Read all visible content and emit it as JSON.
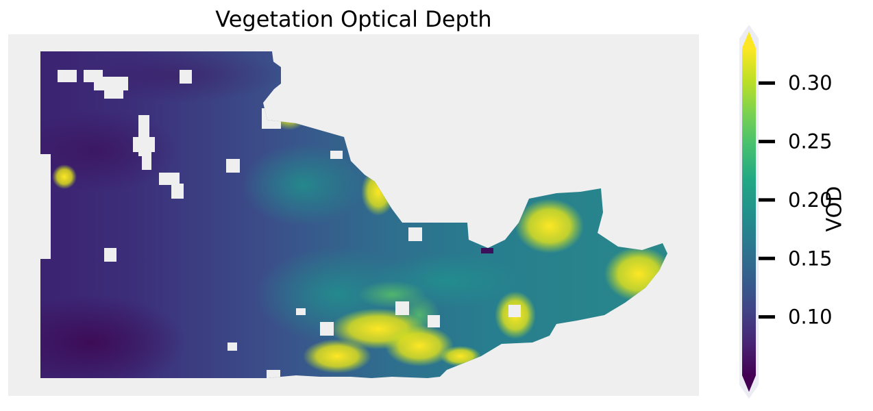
{
  "chart_data": {
    "type": "heatmap",
    "title": "Vegetation Optical Depth",
    "colorbar": {
      "label": "VOD",
      "colormap": "viridis",
      "vmin": 0.05,
      "vmax": 0.33,
      "extend": "both",
      "ticks": [
        0.1,
        0.15,
        0.2,
        0.25,
        0.3
      ],
      "tick_labels": [
        "0.10",
        "0.15",
        "0.20",
        "0.25",
        "0.30"
      ]
    },
    "background_color": "#efefef",
    "no_data_color": "#efefef",
    "grid": false,
    "axes_visible": false,
    "value_pattern": {
      "west": "low (~0.05-0.12)",
      "central": "medium (~0.15-0.22)",
      "east_edges": "high (~0.30+)"
    }
  }
}
